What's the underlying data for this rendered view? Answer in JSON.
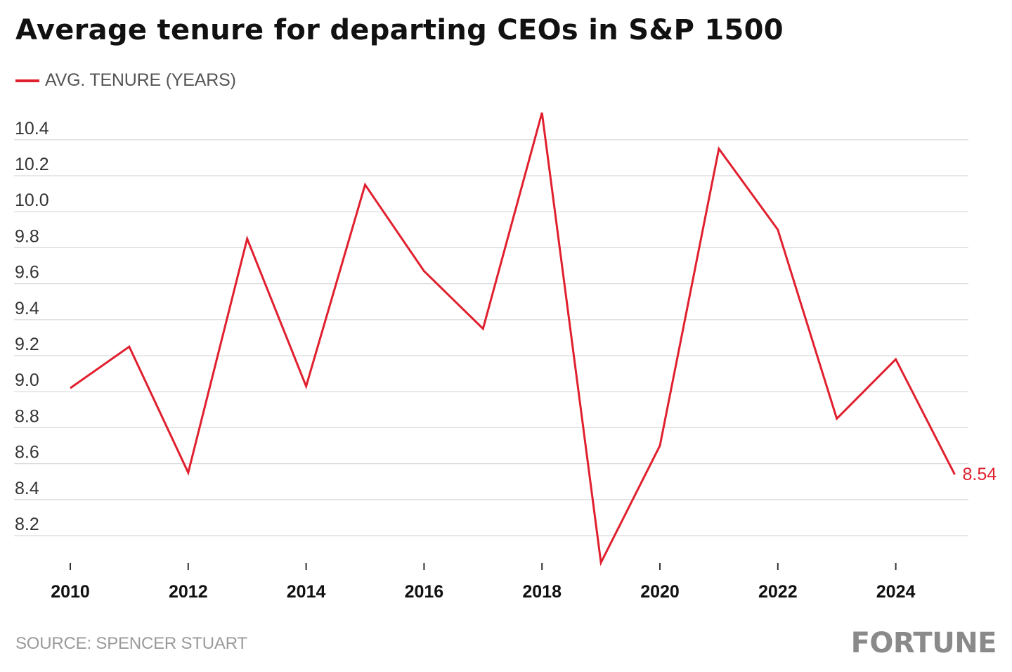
{
  "chart_data": {
    "type": "line",
    "title": "Average tenure for departing CEOs in S&P 1500",
    "xlabel": "",
    "ylabel": "",
    "x": [
      2010,
      2011,
      2012,
      2013,
      2014,
      2015,
      2016,
      2017,
      2018,
      2019,
      2020,
      2021,
      2022,
      2023,
      2024,
      2025
    ],
    "xticks": [
      "2010",
      "2012",
      "2014",
      "2016",
      "2018",
      "2020",
      "2022",
      "2024"
    ],
    "yticks": [
      "8.2",
      "8.4",
      "8.6",
      "8.8",
      "9.0",
      "9.2",
      "9.4",
      "9.6",
      "9.8",
      "10.0",
      "10.2",
      "10.4"
    ],
    "ylim": [
      8.05,
      10.5
    ],
    "xlim": [
      2010,
      2025.6
    ],
    "grid": true,
    "legend": "top-left",
    "series": [
      {
        "name": "AVG. TENURE (YEARS)",
        "color": "#e0202e",
        "values": [
          9.02,
          9.25,
          8.55,
          9.85,
          9.03,
          10.15,
          9.67,
          9.35,
          10.55,
          8.05,
          8.7,
          10.35,
          9.9,
          8.85,
          9.18,
          8.54
        ]
      }
    ],
    "end_label": "8.54"
  },
  "footer": {
    "source": "SOURCE: SPENCER STUART",
    "brand": "FORTUNE"
  },
  "colors": {
    "line": "#e0202e",
    "grid": "#d9d9d9",
    "tick_text": "#333333",
    "year_text": "#111111"
  }
}
